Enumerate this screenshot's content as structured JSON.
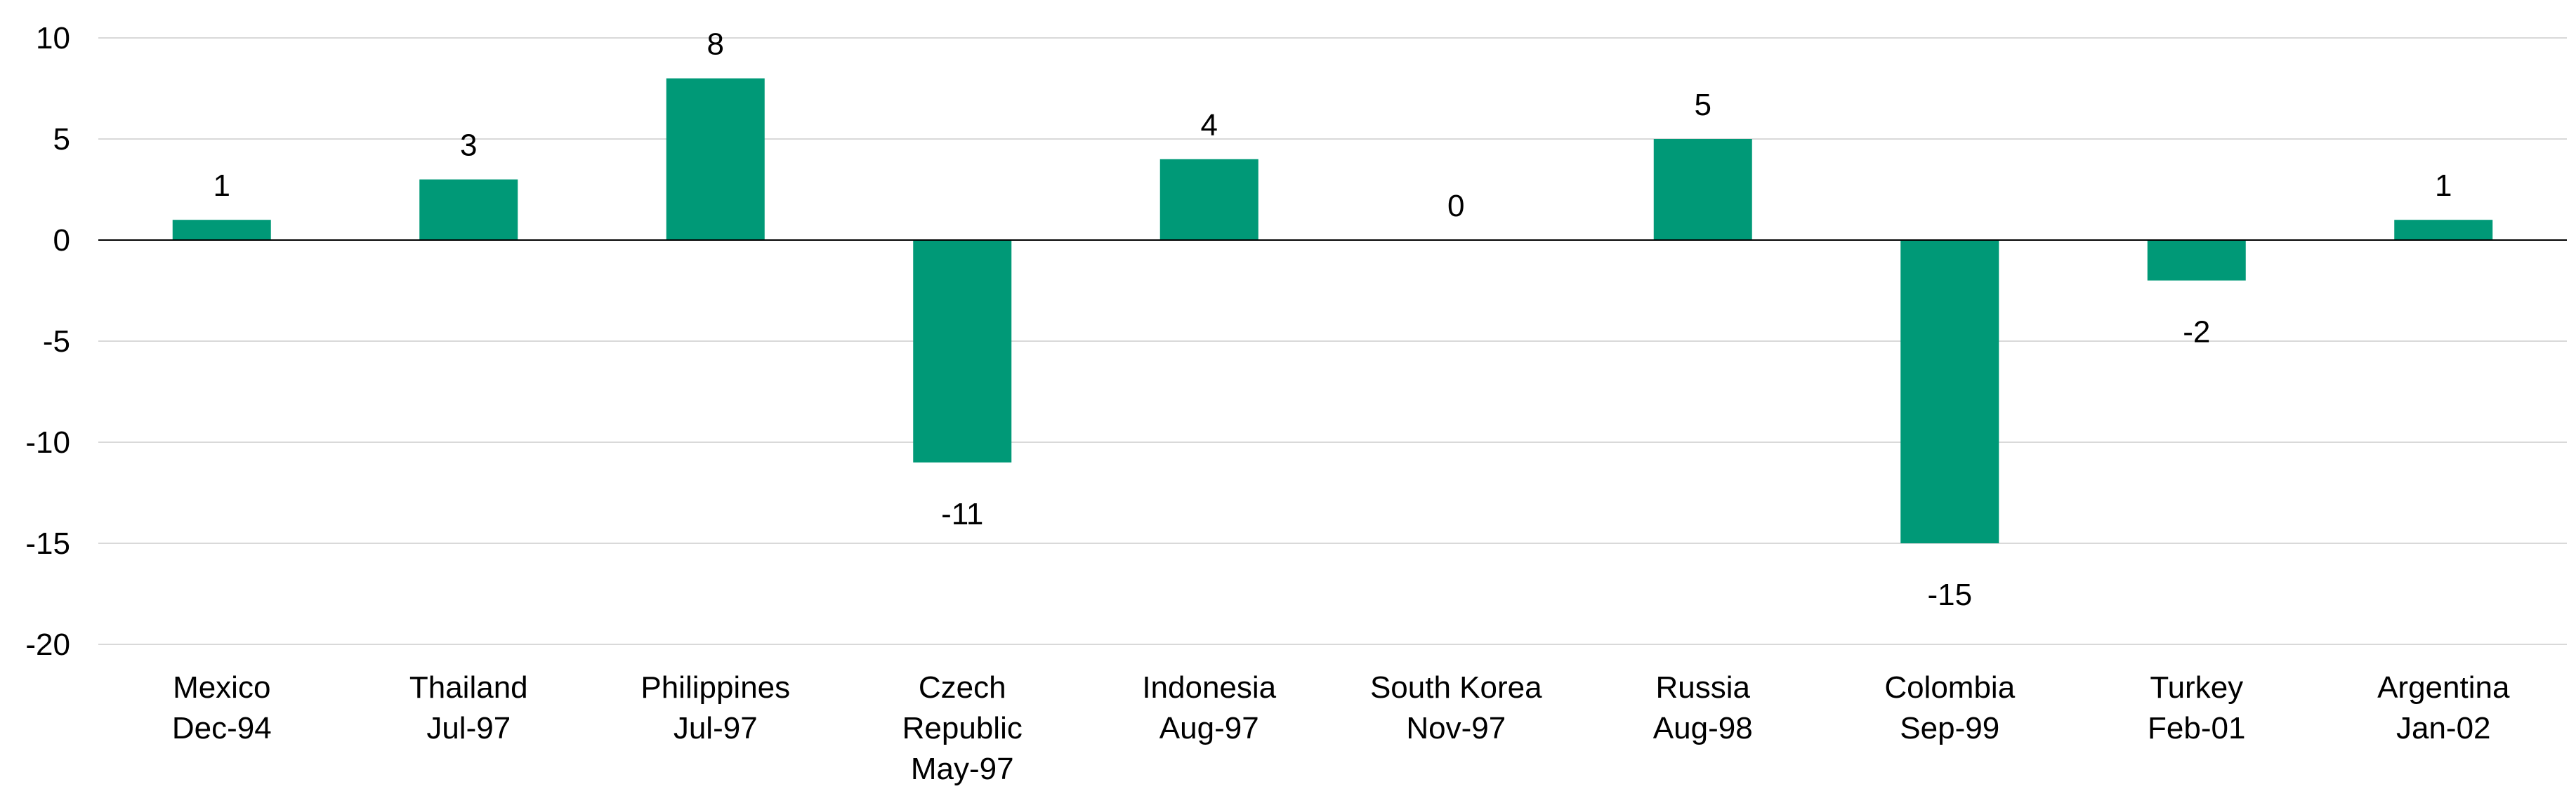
{
  "chart_data": {
    "type": "bar",
    "categories": [
      [
        "Mexico",
        "Dec-94"
      ],
      [
        "Thailand",
        "Jul-97"
      ],
      [
        "Philippines",
        "Jul-97"
      ],
      [
        "Czech",
        "Republic",
        "May-97"
      ],
      [
        "Indonesia",
        "Aug-97"
      ],
      [
        "South Korea",
        "Nov-97"
      ],
      [
        "Russia",
        "Aug-98"
      ],
      [
        "Colombia",
        "Sep-99"
      ],
      [
        "Turkey",
        "Feb-01"
      ],
      [
        "Argentina",
        "Jan-02"
      ]
    ],
    "values": [
      1,
      3,
      8,
      -11,
      4,
      0,
      5,
      -15,
      -2,
      1
    ],
    "data_labels": [
      "1",
      "3",
      "8",
      "-11",
      "4",
      "0",
      "5",
      "-15",
      "-2",
      "1"
    ],
    "yticks": [
      10,
      5,
      0,
      -5,
      -10,
      -15,
      -20
    ],
    "ylim": [
      -20,
      10
    ],
    "grid": true,
    "bar_color": "#009977"
  }
}
